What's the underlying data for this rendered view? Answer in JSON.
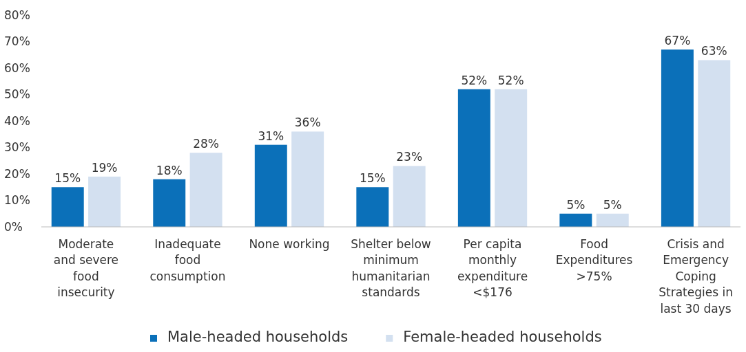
{
  "chart_data": {
    "type": "bar",
    "categories": [
      "Moderate and severe food insecurity",
      "Inadequate food consumption",
      "None working",
      "Shelter below minimum humanitarian standards",
      "Per capita monthly expenditure <$176",
      "Food Expenditures >75%",
      "Crisis and Emergency Coping Strategies in last 30 days"
    ],
    "series": [
      {
        "name": "Male-headed households",
        "color": "#0b70b9",
        "values": [
          15,
          18,
          31,
          15,
          52,
          5,
          67
        ],
        "value_labels": [
          "15%",
          "18%",
          "31%",
          "15%",
          "52%",
          "5%",
          "67%"
        ]
      },
      {
        "name": "Female-headed households",
        "color": "#d3e0f0",
        "values": [
          19,
          28,
          36,
          23,
          52,
          5,
          63
        ],
        "value_labels": [
          "19%",
          "28%",
          "36%",
          "23%",
          "52%",
          "5%",
          "63%"
        ]
      }
    ],
    "ylim": [
      0,
      80
    ],
    "yticks": [
      {
        "value": 0,
        "label": "0%"
      },
      {
        "value": 10,
        "label": "10%"
      },
      {
        "value": 20,
        "label": "20%"
      },
      {
        "value": 30,
        "label": "30%"
      },
      {
        "value": 40,
        "label": "40%"
      },
      {
        "value": 50,
        "label": "50%"
      },
      {
        "value": 60,
        "label": "60%"
      },
      {
        "value": 70,
        "label": "70%"
      },
      {
        "value": 80,
        "label": "80%"
      }
    ],
    "legend": "bottom"
  }
}
